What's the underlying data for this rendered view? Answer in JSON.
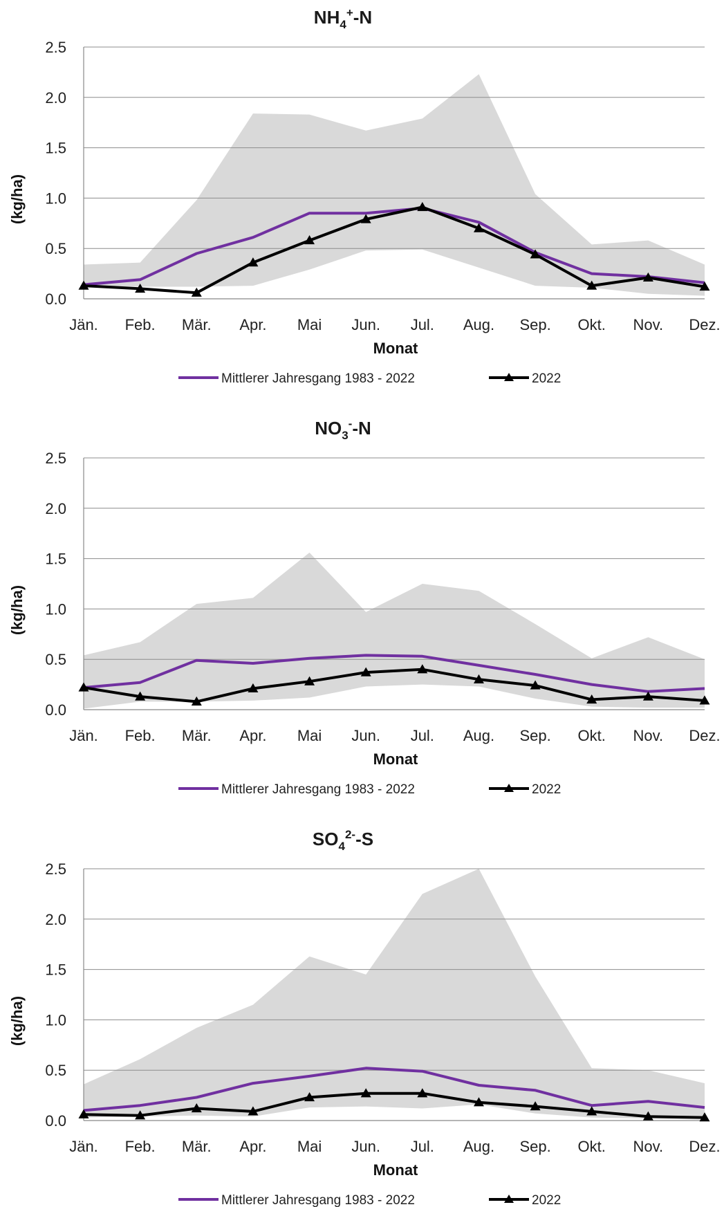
{
  "colors": {
    "band": "#d9d9d9",
    "mean": "#7030a0",
    "year": "#000000",
    "grid": "#8c8c8c",
    "axis": "#888888"
  },
  "chart_data": [
    {
      "type": "line",
      "title": "NH4+-N",
      "title_parts": {
        "main": "NH",
        "sub": "4",
        "sup": "+",
        "tail": "-N"
      },
      "xlabel": "Monat",
      "ylabel": "(kg/ha)",
      "ylim": [
        0,
        2.5
      ],
      "yticks": [
        "0.0",
        "0.5",
        "1.0",
        "1.5",
        "2.0",
        "2.5"
      ],
      "grid": true,
      "legend_position": "bottom",
      "categories": [
        "Jän.",
        "Feb.",
        "Mär.",
        "Apr.",
        "Mai",
        "Jun.",
        "Jul.",
        "Aug.",
        "Sep.",
        "Okt.",
        "Nov.",
        "Dez."
      ],
      "band": {
        "min": [
          0.13,
          0.12,
          0.12,
          0.13,
          0.29,
          0.48,
          0.49,
          0.31,
          0.13,
          0.11,
          0.05,
          0.03
        ],
        "max": [
          0.34,
          0.36,
          0.98,
          1.84,
          1.83,
          1.67,
          1.79,
          2.23,
          1.04,
          0.54,
          0.58,
          0.34
        ]
      },
      "series": [
        {
          "name": "Mittlerer Jahresgang 1983 - 2022",
          "values": [
            0.14,
            0.19,
            0.45,
            0.61,
            0.85,
            0.85,
            0.9,
            0.76,
            0.46,
            0.25,
            0.22,
            0.16
          ]
        },
        {
          "name": "2022",
          "values": [
            0.13,
            0.1,
            0.06,
            0.36,
            0.58,
            0.79,
            0.91,
            0.7,
            0.44,
            0.13,
            0.21,
            0.12
          ]
        }
      ]
    },
    {
      "type": "line",
      "title": "NO3--N",
      "title_parts": {
        "main": "NO",
        "sub": "3",
        "sup": "-",
        "tail": "-N"
      },
      "xlabel": "Monat",
      "ylabel": "(kg/ha)",
      "ylim": [
        0,
        2.5
      ],
      "yticks": [
        "0.0",
        "0.5",
        "1.0",
        "1.5",
        "2.0",
        "2.5"
      ],
      "grid": true,
      "legend_position": "bottom",
      "categories": [
        "Jän.",
        "Feb.",
        "Mär.",
        "Apr.",
        "Mai",
        "Jun.",
        "Jul.",
        "Aug.",
        "Sep.",
        "Okt.",
        "Nov.",
        "Dez."
      ],
      "band": {
        "min": [
          0.01,
          0.08,
          0.08,
          0.09,
          0.12,
          0.23,
          0.25,
          0.23,
          0.11,
          0.03,
          0.02,
          0.02
        ],
        "max": [
          0.54,
          0.67,
          1.05,
          1.11,
          1.56,
          0.97,
          1.25,
          1.18,
          0.85,
          0.51,
          0.72,
          0.5
        ]
      },
      "series": [
        {
          "name": "Mittlerer Jahresgang 1983 - 2022",
          "values": [
            0.22,
            0.27,
            0.49,
            0.46,
            0.51,
            0.54,
            0.53,
            0.44,
            0.35,
            0.25,
            0.18,
            0.21
          ]
        },
        {
          "name": "2022",
          "values": [
            0.22,
            0.13,
            0.08,
            0.21,
            0.28,
            0.37,
            0.4,
            0.3,
            0.24,
            0.1,
            0.13,
            0.09
          ]
        }
      ]
    },
    {
      "type": "line",
      "title": "SO42--S",
      "title_parts": {
        "main": "SO",
        "sub": "4",
        "sup": "2-",
        "tail": "-S"
      },
      "xlabel": "Monat",
      "ylabel": "(kg/ha)",
      "ylim": [
        0,
        2.5
      ],
      "yticks": [
        "0.0",
        "0.5",
        "1.0",
        "1.5",
        "2.0",
        "2.5"
      ],
      "grid": true,
      "legend_position": "bottom",
      "categories": [
        "Jän.",
        "Feb.",
        "Mär.",
        "Apr.",
        "Mai",
        "Jun.",
        "Jul.",
        "Aug.",
        "Sep.",
        "Okt.",
        "Nov.",
        "Dez."
      ],
      "band": {
        "min": [
          0.03,
          0.04,
          0.05,
          0.04,
          0.13,
          0.14,
          0.12,
          0.16,
          0.07,
          0.03,
          0.02,
          0.01
        ],
        "max": [
          0.36,
          0.61,
          0.92,
          1.15,
          1.63,
          1.45,
          2.25,
          2.5,
          1.43,
          0.52,
          0.5,
          0.37
        ]
      },
      "series": [
        {
          "name": "Mittlerer Jahresgang 1983 - 2022",
          "values": [
            0.1,
            0.15,
            0.23,
            0.37,
            0.44,
            0.52,
            0.49,
            0.35,
            0.3,
            0.15,
            0.19,
            0.13
          ]
        },
        {
          "name": "2022",
          "values": [
            0.06,
            0.05,
            0.12,
            0.09,
            0.23,
            0.27,
            0.27,
            0.18,
            0.14,
            0.09,
            0.04,
            0.03
          ]
        }
      ]
    }
  ]
}
